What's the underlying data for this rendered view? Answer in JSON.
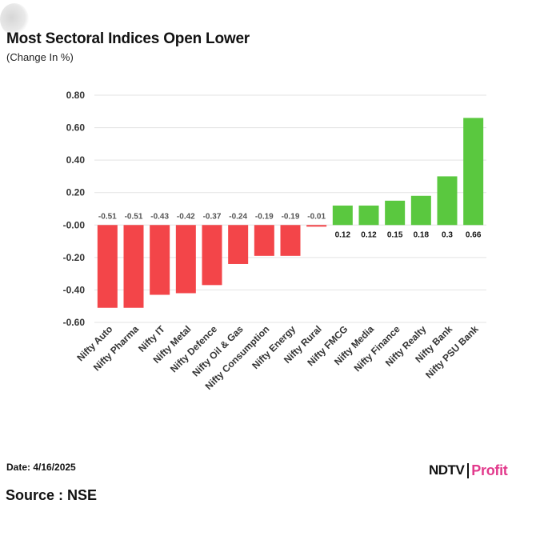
{
  "header": {
    "title": "Most Sectoral Indices Open Lower",
    "subtitle": "(Change In %)"
  },
  "footer": {
    "date": "Date: 4/16/2025",
    "source": "Source : NSE"
  },
  "brand": {
    "ndtv": "NDTV",
    "profit": "Profit",
    "profit_color": "#e23a8c"
  },
  "colors": {
    "negative": "#f34549",
    "positive": "#5ac83f",
    "grid": "#e3e3e3"
  },
  "chart_data": {
    "type": "bar",
    "categories": [
      "Nifty Auto",
      "Nifty Pharma",
      "Nifty IT",
      "Nifty Metal",
      "Nifty Defence",
      "Nifty Oil & Gas",
      "Nifty Consumption",
      "Nifty Energy",
      "Nifty Rural",
      "Nifty FMCG",
      "Nifty Media",
      "Nifty Finance",
      "Nifty Realty",
      "Nifty Bank",
      "Nifty PSU Bank"
    ],
    "values": [
      -0.51,
      -0.51,
      -0.43,
      -0.42,
      -0.37,
      -0.24,
      -0.19,
      -0.19,
      -0.01,
      0.12,
      0.12,
      0.15,
      0.18,
      0.3,
      0.66
    ],
    "value_labels": [
      "-0.51",
      "-0.51",
      "-0.43",
      "-0.42",
      "-0.37",
      "-0.24",
      "-0.19",
      "-0.19",
      "-0.01",
      "0.12",
      "0.12",
      "0.15",
      "0.18",
      "0.3",
      "0.66"
    ],
    "y_ticks": [
      "0.80",
      "0.60",
      "0.40",
      "0.20",
      "-0.00",
      "-0.20",
      "-0.40",
      "-0.60"
    ],
    "ylim": [
      -0.6,
      0.8
    ],
    "grid": true,
    "legend": "none"
  }
}
